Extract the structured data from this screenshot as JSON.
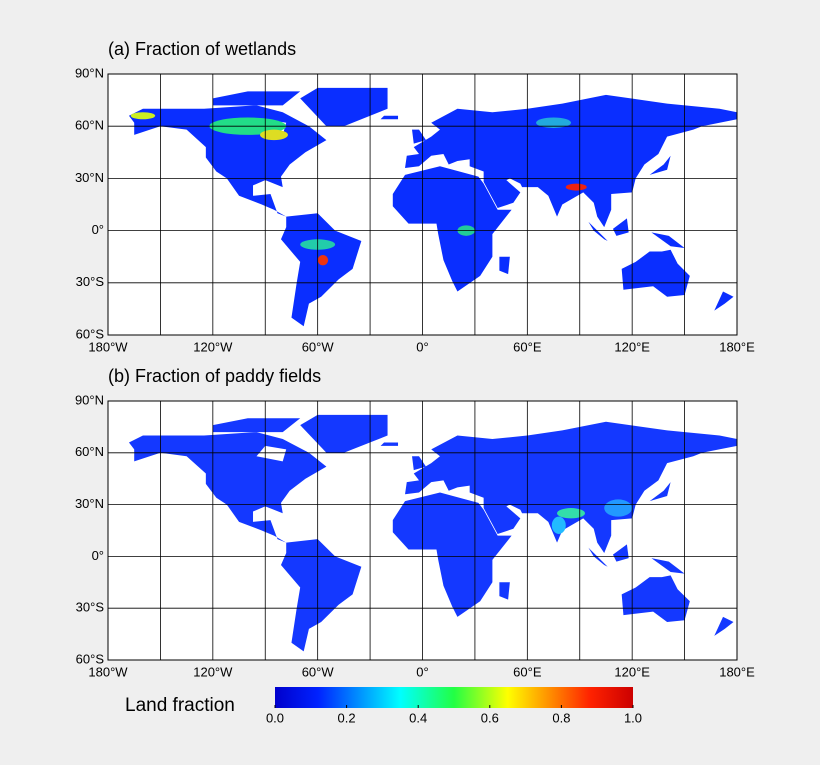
{
  "panels": [
    {
      "title": "(a) Fraction of wetlands",
      "lonlim": [
        -180,
        180
      ],
      "latlim": [
        -60,
        90
      ],
      "lonticks": [
        {
          "value": -180,
          "label": "180°W"
        },
        {
          "value": -120,
          "label": "120°W"
        },
        {
          "value": -60,
          "label": "60°W"
        },
        {
          "value": 0,
          "label": "0°"
        },
        {
          "value": 60,
          "label": "60°E"
        },
        {
          "value": 120,
          "label": "120°E"
        },
        {
          "value": 180,
          "label": "180°E"
        }
      ],
      "latticks": [
        {
          "value": 90,
          "label": "90°N"
        },
        {
          "value": 60,
          "label": "60°N"
        },
        {
          "value": 30,
          "label": "30°N"
        },
        {
          "value": 0,
          "label": "0°"
        },
        {
          "value": -30,
          "label": "30°S"
        },
        {
          "value": -60,
          "label": "60°S"
        }
      ]
    },
    {
      "title": "(b) Fraction of paddy fields",
      "lonlim": [
        -180,
        180
      ],
      "latlim": [
        -60,
        90
      ],
      "lonticks": [
        {
          "value": -180,
          "label": "180°W"
        },
        {
          "value": -120,
          "label": "120°W"
        },
        {
          "value": -60,
          "label": "60°W"
        },
        {
          "value": 0,
          "label": "0°"
        },
        {
          "value": 60,
          "label": "60°E"
        },
        {
          "value": 120,
          "label": "120°E"
        },
        {
          "value": 180,
          "label": "180°E"
        }
      ],
      "latticks": [
        {
          "value": 90,
          "label": "90°N"
        },
        {
          "value": 60,
          "label": "60°N"
        },
        {
          "value": 30,
          "label": "30°N"
        },
        {
          "value": 0,
          "label": "0°"
        },
        {
          "value": -30,
          "label": "30°S"
        },
        {
          "value": -60,
          "label": "60°S"
        }
      ]
    }
  ],
  "colorbar": {
    "label": "Land fraction",
    "lim": [
      0,
      1
    ],
    "ticks": [
      {
        "value": 0,
        "label": "0.0"
      },
      {
        "value": 0.2,
        "label": "0.2"
      },
      {
        "value": 0.4,
        "label": "0.4"
      },
      {
        "value": 0.6,
        "label": "0.6"
      },
      {
        "value": 0.8,
        "label": "0.8"
      },
      {
        "value": 1,
        "label": "1.0"
      }
    ]
  }
}
